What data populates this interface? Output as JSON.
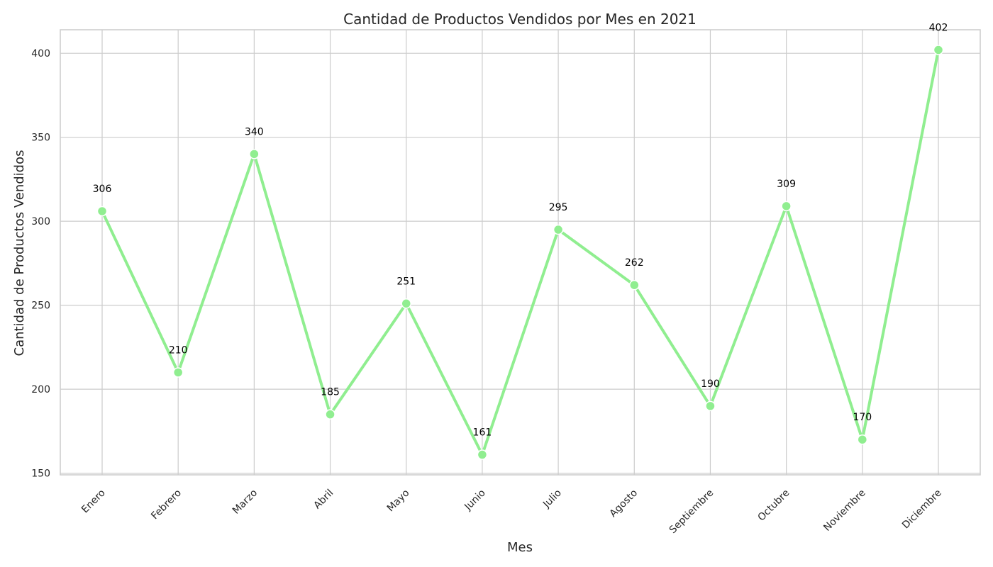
{
  "chart_data": {
    "type": "line",
    "title": "Cantidad de Productos Vendidos por Mes en 2021",
    "xlabel": "Mes",
    "ylabel": "Cantidad de Productos Vendidos",
    "categories": [
      "Enero",
      "Febrero",
      "Marzo",
      "Abril",
      "Mayo",
      "Junio",
      "Julio",
      "Agosto",
      "Septiembre",
      "Octubre",
      "Noviembre",
      "Diciembre"
    ],
    "values": [
      306,
      210,
      340,
      185,
      251,
      161,
      295,
      262,
      190,
      309,
      170,
      402
    ],
    "ylim": [
      149,
      414
    ],
    "yticks": [
      150,
      200,
      250,
      300,
      350,
      400
    ],
    "grid": true,
    "legend": "none",
    "line_color": "#90ee90",
    "marker_color": "#90ee90",
    "data_labels": true
  }
}
